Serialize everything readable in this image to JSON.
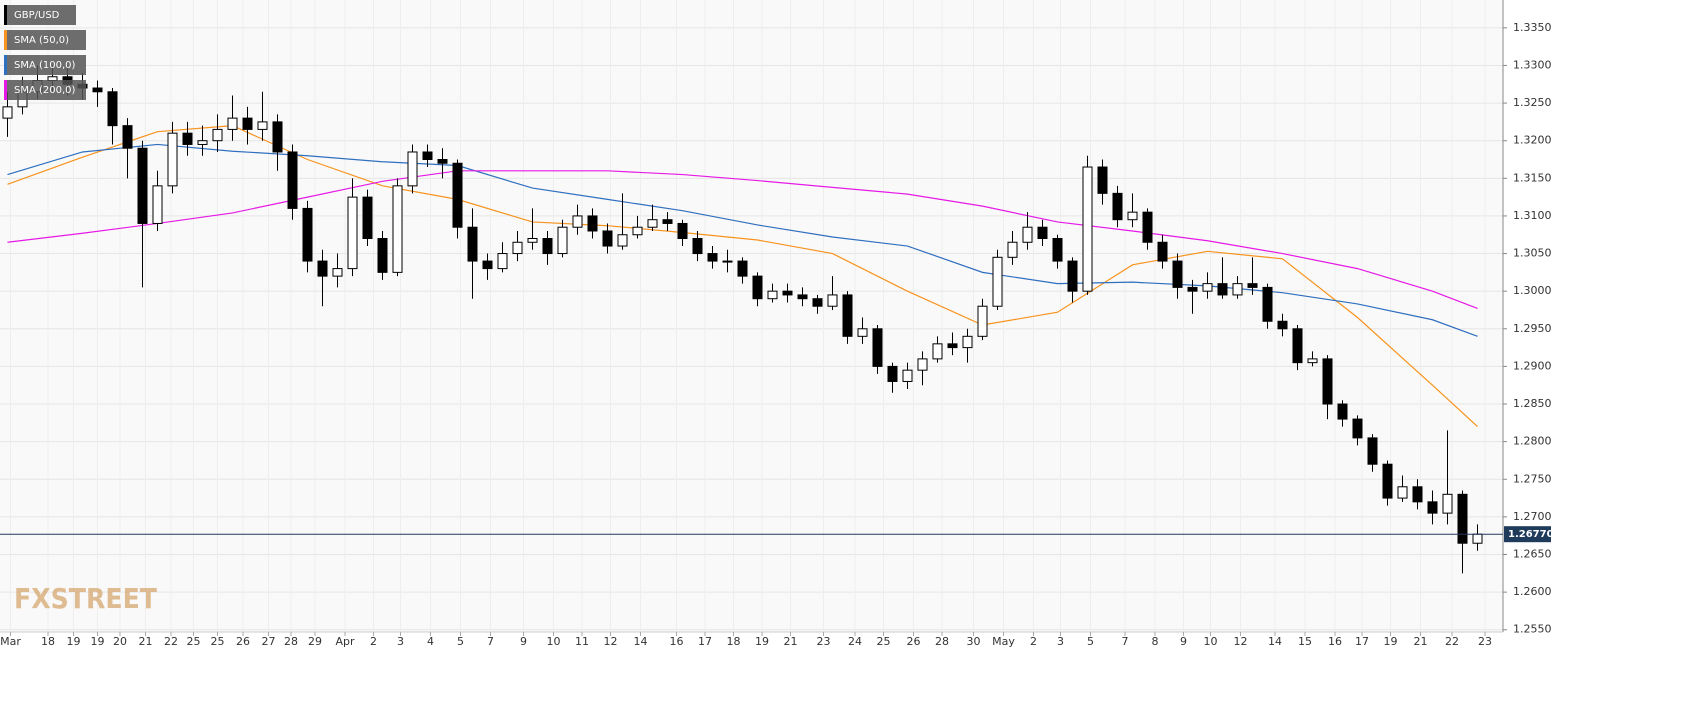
{
  "chart_data": {
    "type": "candlestick",
    "x": [
      0,
      1,
      2,
      3,
      4,
      5,
      6,
      7,
      8,
      9,
      10,
      11,
      12,
      13,
      14,
      15,
      16,
      17,
      18,
      19,
      20,
      21,
      22,
      23,
      24,
      25,
      26,
      27,
      28,
      29,
      30,
      31,
      32,
      33,
      34,
      35,
      36,
      37,
      38,
      39,
      40,
      41,
      42,
      43,
      44,
      45,
      46,
      47,
      48,
      49,
      50,
      51,
      52,
      53,
      54,
      55,
      56,
      57,
      58,
      59,
      60,
      61,
      62,
      63,
      64,
      65,
      66,
      67,
      68,
      69,
      70,
      71,
      72,
      73,
      74,
      75,
      76,
      77,
      78,
      79,
      80,
      81,
      82,
      83,
      84,
      85,
      86,
      87,
      88,
      89,
      90,
      91,
      92,
      93,
      94,
      95,
      96,
      97,
      98
    ],
    "series": [
      {
        "name": "GBP/USD",
        "up_color": "#ffffff",
        "down_color": "#000000",
        "open": [
          1.323,
          1.3245,
          1.3265,
          1.328,
          1.3285,
          1.3275,
          1.327,
          1.3265,
          1.322,
          1.319,
          1.309,
          1.314,
          1.321,
          1.3195,
          1.32,
          1.3215,
          1.323,
          1.3215,
          1.3225,
          1.3185,
          1.311,
          1.304,
          1.302,
          1.303,
          1.3125,
          1.307,
          1.3025,
          1.314,
          1.3185,
          1.3175,
          1.317,
          1.3085,
          1.304,
          1.303,
          1.305,
          1.3065,
          1.307,
          1.305,
          1.3085,
          1.31,
          1.308,
          1.306,
          1.3075,
          1.3085,
          1.3095,
          1.309,
          1.307,
          1.305,
          1.304,
          1.304,
          1.302,
          1.299,
          1.3,
          1.2995,
          1.299,
          1.298,
          1.2995,
          1.294,
          1.295,
          1.29,
          1.288,
          1.2895,
          1.291,
          1.293,
          1.2925,
          1.294,
          1.298,
          1.3045,
          1.3065,
          1.3085,
          1.307,
          1.304,
          1.3,
          1.3165,
          1.313,
          1.3095,
          1.3105,
          1.3065,
          1.304,
          1.3005,
          1.3,
          1.301,
          1.2995,
          1.301,
          1.3005,
          1.296,
          1.295,
          1.2905,
          1.291,
          1.285,
          1.283,
          1.2805,
          1.277,
          1.2725,
          1.274,
          1.272,
          1.2705,
          1.273,
          1.2665
        ],
        "high": [
          1.3265,
          1.3285,
          1.33,
          1.33,
          1.33,
          1.329,
          1.328,
          1.327,
          1.323,
          1.32,
          1.316,
          1.3225,
          1.3225,
          1.322,
          1.3235,
          1.326,
          1.3245,
          1.3265,
          1.3235,
          1.3195,
          1.312,
          1.3055,
          1.305,
          1.315,
          1.3135,
          1.308,
          1.315,
          1.3195,
          1.3195,
          1.319,
          1.3175,
          1.311,
          1.305,
          1.3065,
          1.308,
          1.311,
          1.308,
          1.3095,
          1.3115,
          1.311,
          1.309,
          1.313,
          1.31,
          1.3115,
          1.3105,
          1.3095,
          1.308,
          1.306,
          1.3055,
          1.3045,
          1.3025,
          1.301,
          1.301,
          1.3005,
          1.2995,
          1.302,
          1.3,
          1.2965,
          1.2955,
          1.2905,
          1.2905,
          1.292,
          1.294,
          1.2945,
          1.295,
          1.299,
          1.3055,
          1.308,
          1.3105,
          1.3095,
          1.3075,
          1.3045,
          1.318,
          1.3175,
          1.314,
          1.313,
          1.311,
          1.3075,
          1.305,
          1.3015,
          1.3025,
          1.3045,
          1.302,
          1.3045,
          1.301,
          1.297,
          1.2955,
          1.292,
          1.2915,
          1.2855,
          1.2835,
          1.281,
          1.2775,
          1.2755,
          1.275,
          1.2735,
          1.2815,
          1.2735,
          1.269
        ],
        "low": [
          1.3205,
          1.3235,
          1.3255,
          1.3265,
          1.326,
          1.3255,
          1.3245,
          1.3195,
          1.315,
          1.3005,
          1.308,
          1.313,
          1.318,
          1.318,
          1.3185,
          1.32,
          1.3195,
          1.32,
          1.316,
          1.3095,
          1.3025,
          1.298,
          1.3005,
          1.302,
          1.306,
          1.3015,
          1.302,
          1.313,
          1.3165,
          1.315,
          1.307,
          1.299,
          1.3015,
          1.3025,
          1.304,
          1.3055,
          1.3035,
          1.3045,
          1.3075,
          1.307,
          1.305,
          1.3055,
          1.307,
          1.308,
          1.308,
          1.306,
          1.304,
          1.303,
          1.3025,
          1.301,
          1.298,
          1.2985,
          1.2985,
          1.298,
          1.297,
          1.2975,
          1.293,
          1.293,
          1.289,
          1.2865,
          1.287,
          1.2875,
          1.2905,
          1.2915,
          1.2905,
          1.2935,
          1.2975,
          1.3035,
          1.3055,
          1.306,
          1.303,
          1.2985,
          1.2995,
          1.3115,
          1.3085,
          1.3085,
          1.3055,
          1.303,
          1.299,
          1.297,
          1.299,
          1.299,
          1.299,
          1.2995,
          1.295,
          1.294,
          1.2895,
          1.29,
          1.283,
          1.282,
          1.2795,
          1.276,
          1.2715,
          1.272,
          1.271,
          1.269,
          1.269,
          1.2625,
          1.2655
        ],
        "close": [
          1.3245,
          1.3265,
          1.328,
          1.3285,
          1.3275,
          1.327,
          1.3265,
          1.322,
          1.319,
          1.309,
          1.314,
          1.321,
          1.3195,
          1.32,
          1.3215,
          1.323,
          1.3215,
          1.3225,
          1.3185,
          1.311,
          1.304,
          1.302,
          1.303,
          1.3125,
          1.307,
          1.3025,
          1.314,
          1.3185,
          1.3175,
          1.317,
          1.3085,
          1.304,
          1.303,
          1.305,
          1.3065,
          1.307,
          1.305,
          1.3085,
          1.31,
          1.308,
          1.306,
          1.3075,
          1.3085,
          1.3095,
          1.309,
          1.307,
          1.305,
          1.304,
          1.304,
          1.302,
          1.299,
          1.3,
          1.2995,
          1.299,
          1.298,
          1.2995,
          1.294,
          1.295,
          1.29,
          1.288,
          1.2895,
          1.291,
          1.293,
          1.2925,
          1.294,
          1.298,
          1.3045,
          1.3065,
          1.3085,
          1.307,
          1.304,
          1.3,
          1.3165,
          1.313,
          1.3095,
          1.3105,
          1.3065,
          1.304,
          1.3005,
          1.3,
          1.301,
          1.2995,
          1.301,
          1.3005,
          1.296,
          1.295,
          1.2905,
          1.291,
          1.285,
          1.283,
          1.2805,
          1.277,
          1.2725,
          1.274,
          1.272,
          1.2705,
          1.273,
          1.2665,
          1.2677
        ]
      }
    ],
    "overlays": [
      {
        "name": "SMA (50,0)",
        "color": "#f7931e",
        "x": [
          0,
          5,
          10,
          15,
          20,
          25,
          30,
          35,
          40,
          45,
          50,
          55,
          60,
          65,
          70,
          75,
          80,
          85,
          90,
          95,
          98
        ],
        "values": [
          1.3142,
          1.3178,
          1.3212,
          1.322,
          1.3175,
          1.314,
          1.3122,
          1.3092,
          1.3087,
          1.3078,
          1.3068,
          1.305,
          1.3,
          1.2955,
          1.2972,
          1.3035,
          1.3053,
          1.3043,
          1.2965,
          1.2875,
          1.282
        ]
      },
      {
        "name": "SMA (100,0)",
        "color": "#2f6fbf",
        "x": [
          0,
          5,
          10,
          15,
          20,
          25,
          30,
          35,
          40,
          45,
          50,
          55,
          60,
          65,
          70,
          75,
          80,
          85,
          90,
          95,
          98
        ],
        "values": [
          1.3155,
          1.3185,
          1.3195,
          1.3186,
          1.318,
          1.3172,
          1.3167,
          1.3137,
          1.3122,
          1.3107,
          1.3088,
          1.3072,
          1.306,
          1.3025,
          1.301,
          1.3012,
          1.3007,
          1.2998,
          1.2983,
          1.2962,
          1.294
        ]
      },
      {
        "name": "SMA (200,0)",
        "color": "#e619e6",
        "x": [
          0,
          5,
          10,
          15,
          20,
          25,
          30,
          35,
          40,
          45,
          50,
          55,
          60,
          65,
          70,
          75,
          80,
          85,
          90,
          95,
          98
        ],
        "values": [
          1.3065,
          1.3077,
          1.309,
          1.3104,
          1.3125,
          1.3146,
          1.316,
          1.316,
          1.316,
          1.3155,
          1.3147,
          1.3138,
          1.3129,
          1.3113,
          1.3092,
          1.308,
          1.3067,
          1.305,
          1.303,
          1.3,
          1.2977
        ]
      }
    ],
    "xlim": [
      -0.5,
      99.5
    ],
    "xticks": [
      {
        "value": 0.2,
        "label": "Mar"
      },
      {
        "value": 2.7,
        "label": "18"
      },
      {
        "value": 4.4,
        "label": "19"
      },
      {
        "value": 6.0,
        "label": "19"
      },
      {
        "value": 7.5,
        "label": "20"
      },
      {
        "value": 9.2,
        "label": "21"
      },
      {
        "value": 10.9,
        "label": "22"
      },
      {
        "value": 12.4,
        "label": "25"
      },
      {
        "value": 14.0,
        "label": "25"
      },
      {
        "value": 15.7,
        "label": "26"
      },
      {
        "value": 17.4,
        "label": "27"
      },
      {
        "value": 18.9,
        "label": "28"
      },
      {
        "value": 20.5,
        "label": "29"
      },
      {
        "value": 22.5,
        "label": "Apr"
      },
      {
        "value": 24.4,
        "label": "2"
      },
      {
        "value": 26.2,
        "label": "3"
      },
      {
        "value": 28.2,
        "label": "4"
      },
      {
        "value": 30.2,
        "label": "5"
      },
      {
        "value": 32.2,
        "label": "7"
      },
      {
        "value": 34.4,
        "label": "9"
      },
      {
        "value": 36.4,
        "label": "10"
      },
      {
        "value": 38.3,
        "label": "11"
      },
      {
        "value": 40.2,
        "label": "12"
      },
      {
        "value": 42.2,
        "label": "14"
      },
      {
        "value": 44.6,
        "label": "16"
      },
      {
        "value": 46.5,
        "label": "17"
      },
      {
        "value": 48.4,
        "label": "18"
      },
      {
        "value": 50.3,
        "label": "19"
      },
      {
        "value": 52.2,
        "label": "21"
      },
      {
        "value": 54.4,
        "label": "23"
      },
      {
        "value": 56.5,
        "label": "24"
      },
      {
        "value": 58.4,
        "label": "25"
      },
      {
        "value": 60.4,
        "label": "26"
      },
      {
        "value": 62.3,
        "label": "28"
      },
      {
        "value": 64.4,
        "label": "30"
      },
      {
        "value": 66.4,
        "label": "May"
      },
      {
        "value": 68.4,
        "label": "2"
      },
      {
        "value": 70.2,
        "label": "3"
      },
      {
        "value": 72.2,
        "label": "5"
      },
      {
        "value": 74.5,
        "label": "7"
      },
      {
        "value": 76.5,
        "label": "8"
      },
      {
        "value": 78.4,
        "label": "9"
      },
      {
        "value": 80.2,
        "label": "10"
      },
      {
        "value": 82.2,
        "label": "12"
      },
      {
        "value": 84.5,
        "label": "14"
      },
      {
        "value": 86.5,
        "label": "15"
      },
      {
        "value": 88.5,
        "label": "16"
      },
      {
        "value": 90.3,
        "label": "17"
      },
      {
        "value": 92.2,
        "label": "19"
      },
      {
        "value": 94.2,
        "label": "21"
      },
      {
        "value": 96.3,
        "label": "22"
      },
      {
        "value": 98.5,
        "label": "23"
      }
    ],
    "ylim": [
      1.2547,
      1.3387
    ],
    "yticks": [
      {
        "value": 1.255,
        "label": "1.2550"
      },
      {
        "value": 1.26,
        "label": "1.2600"
      },
      {
        "value": 1.265,
        "label": "1.2650"
      },
      {
        "value": 1.27,
        "label": "1.2700"
      },
      {
        "value": 1.275,
        "label": "1.2750"
      },
      {
        "value": 1.28,
        "label": "1.2800"
      },
      {
        "value": 1.285,
        "label": "1.2850"
      },
      {
        "value": 1.29,
        "label": "1.2900"
      },
      {
        "value": 1.295,
        "label": "1.2950"
      },
      {
        "value": 1.3,
        "label": "1.3000"
      },
      {
        "value": 1.305,
        "label": "1.3050"
      },
      {
        "value": 1.31,
        "label": "1.3100"
      },
      {
        "value": 1.315,
        "label": "1.3150"
      },
      {
        "value": 1.32,
        "label": "1.3200"
      },
      {
        "value": 1.325,
        "label": "1.3250"
      },
      {
        "value": 1.33,
        "label": "1.3300"
      },
      {
        "value": 1.335,
        "label": "1.3350"
      }
    ],
    "grid": true,
    "last_price": {
      "value": 1.2677,
      "label": "1.26770",
      "color": "#1f3b5c"
    },
    "watermark": "FXSTREET"
  }
}
